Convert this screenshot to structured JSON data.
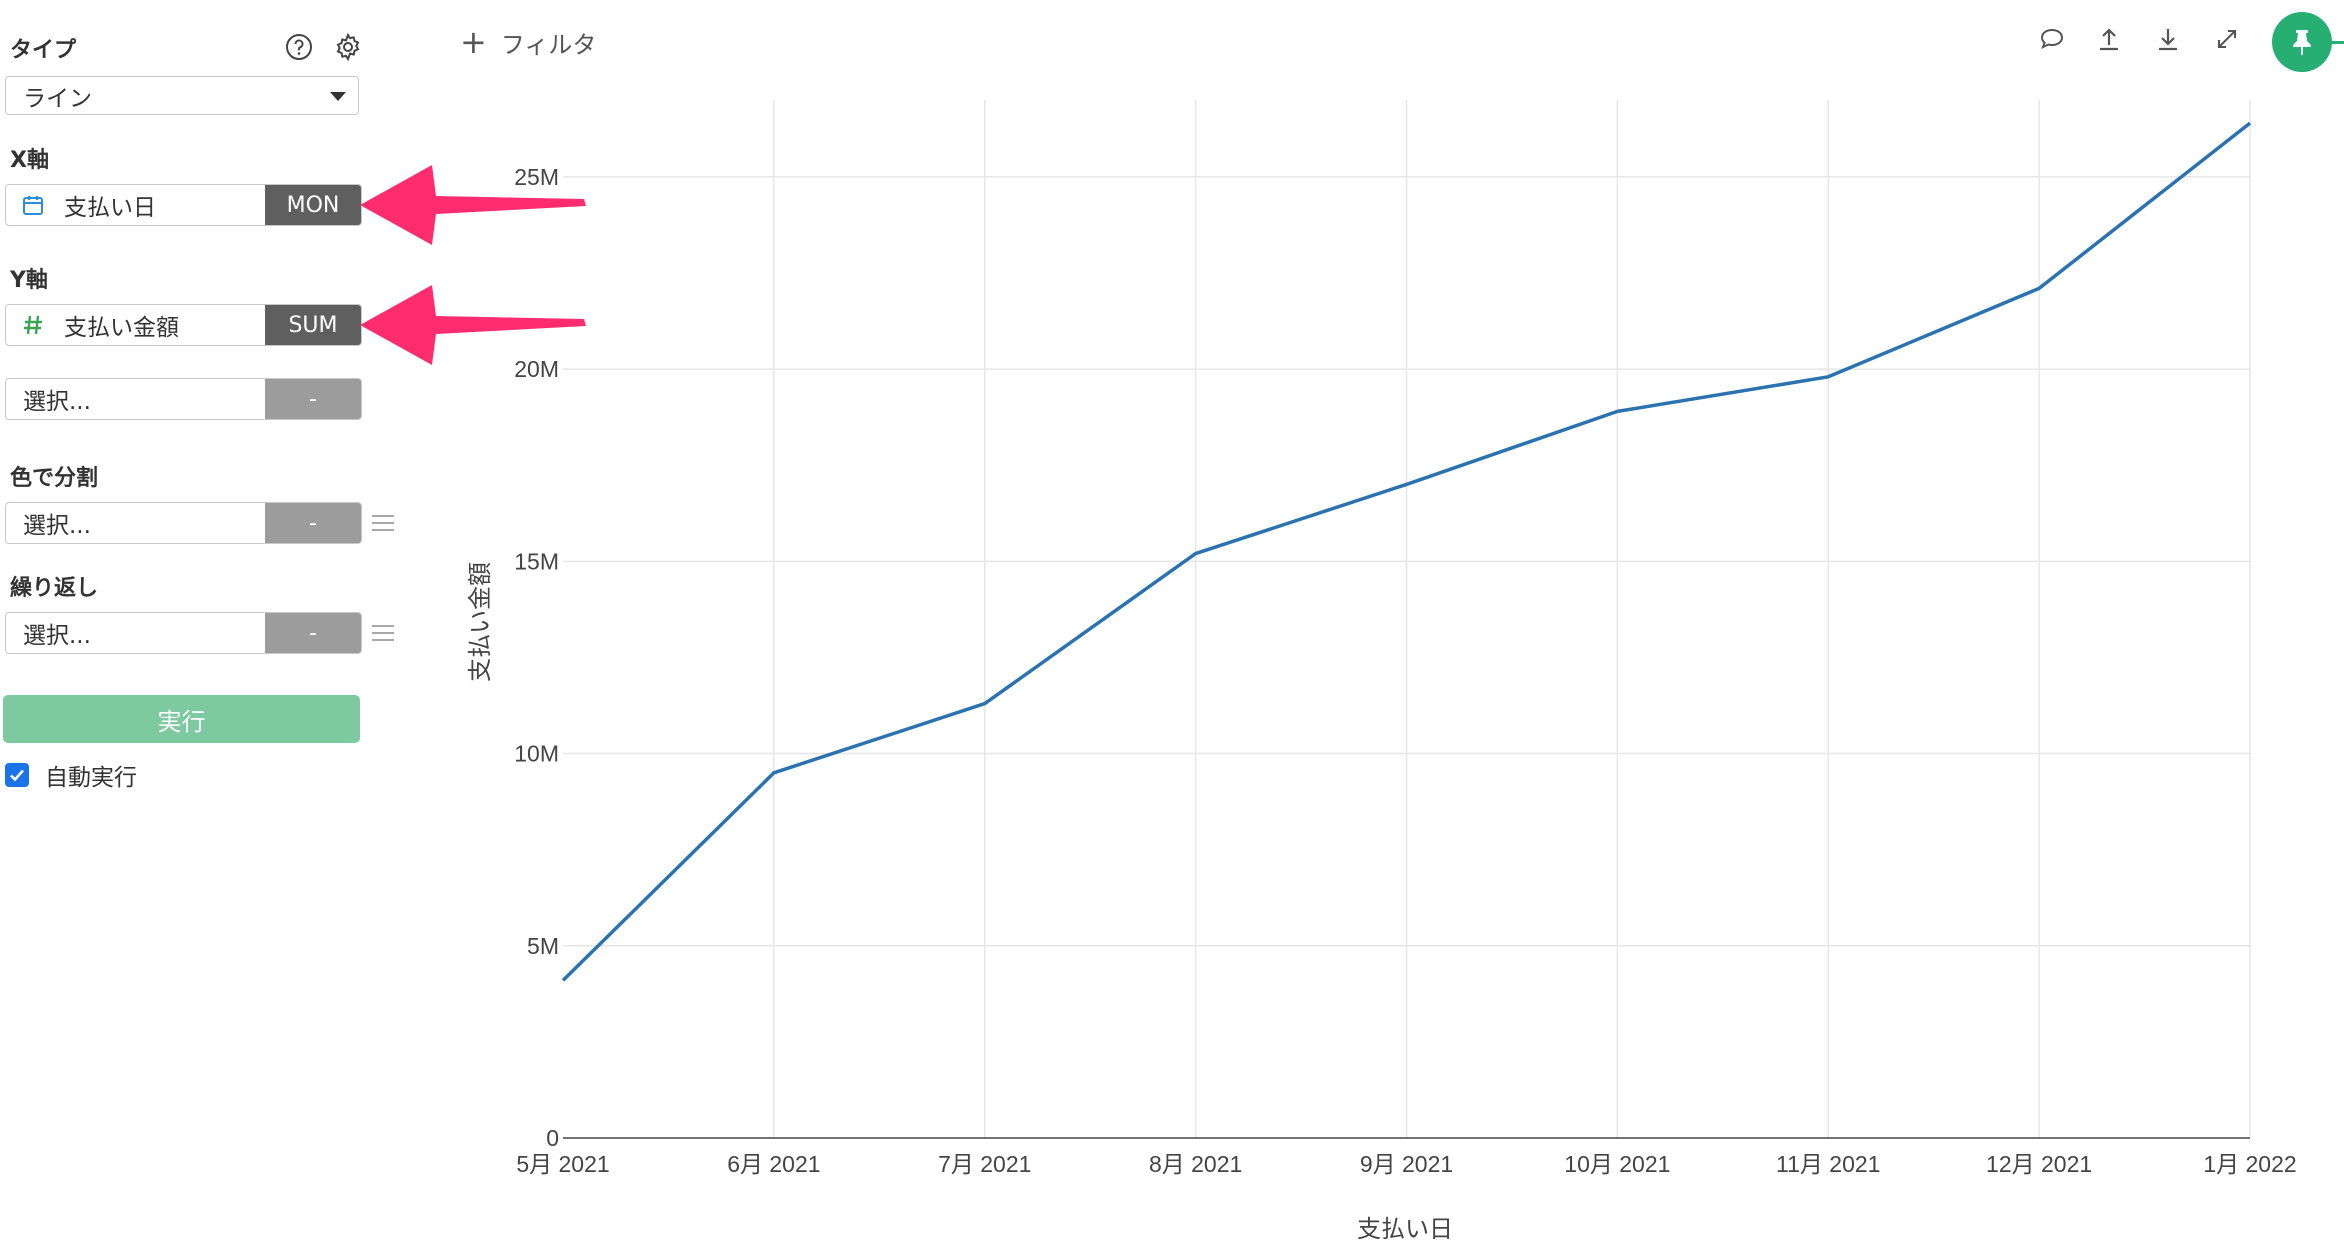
{
  "sidebar": {
    "type_label": "タイプ",
    "type_value": "ライン",
    "x_axis_label": "X軸",
    "x_field": "支払い日",
    "x_agg": "MON",
    "y_axis_label": "Y軸",
    "y_field": "支払い金額",
    "y_agg": "SUM",
    "y2_placeholder": "選択...",
    "y2_agg": "-",
    "color_label": "色で分割",
    "color_placeholder": "選択...",
    "color_agg": "-",
    "repeat_label": "繰り返し",
    "repeat_placeholder": "選択...",
    "repeat_agg": "-",
    "run_label": "実行",
    "auto_run_label": "自動実行",
    "auto_run_checked": true
  },
  "toolbar": {
    "filter_label": "フィルタ",
    "icons": [
      "comment-icon",
      "upload-icon",
      "download-icon",
      "expand-icon",
      "pin-icon"
    ]
  },
  "colors": {
    "line": "#2a73b0",
    "highlight_arrow": "#ff2d6f",
    "run_button": "#7dcaa0",
    "pin_button": "#27ae72",
    "tag_dark": "#5f5f5f"
  },
  "chart_data": {
    "type": "line",
    "xlabel": "支払い日",
    "ylabel": "支払い金額",
    "categories": [
      "5月 2021",
      "6月 2021",
      "7月 2021",
      "8月 2021",
      "9月 2021",
      "10月 2021",
      "11月 2021",
      "12月 2021",
      "1月 2022"
    ],
    "series": [
      {
        "values": [
          4100000,
          9500000,
          11300000,
          15200000,
          17000000,
          18900000,
          19800000,
          22100000,
          26400000
        ]
      }
    ],
    "ylim": [
      0,
      27000000
    ],
    "yticks": [
      0,
      5000000,
      10000000,
      15000000,
      20000000,
      25000000
    ],
    "ytick_labels": [
      "0",
      "5M",
      "10M",
      "15M",
      "20M",
      "25M"
    ],
    "grid": true,
    "legend": "none"
  }
}
